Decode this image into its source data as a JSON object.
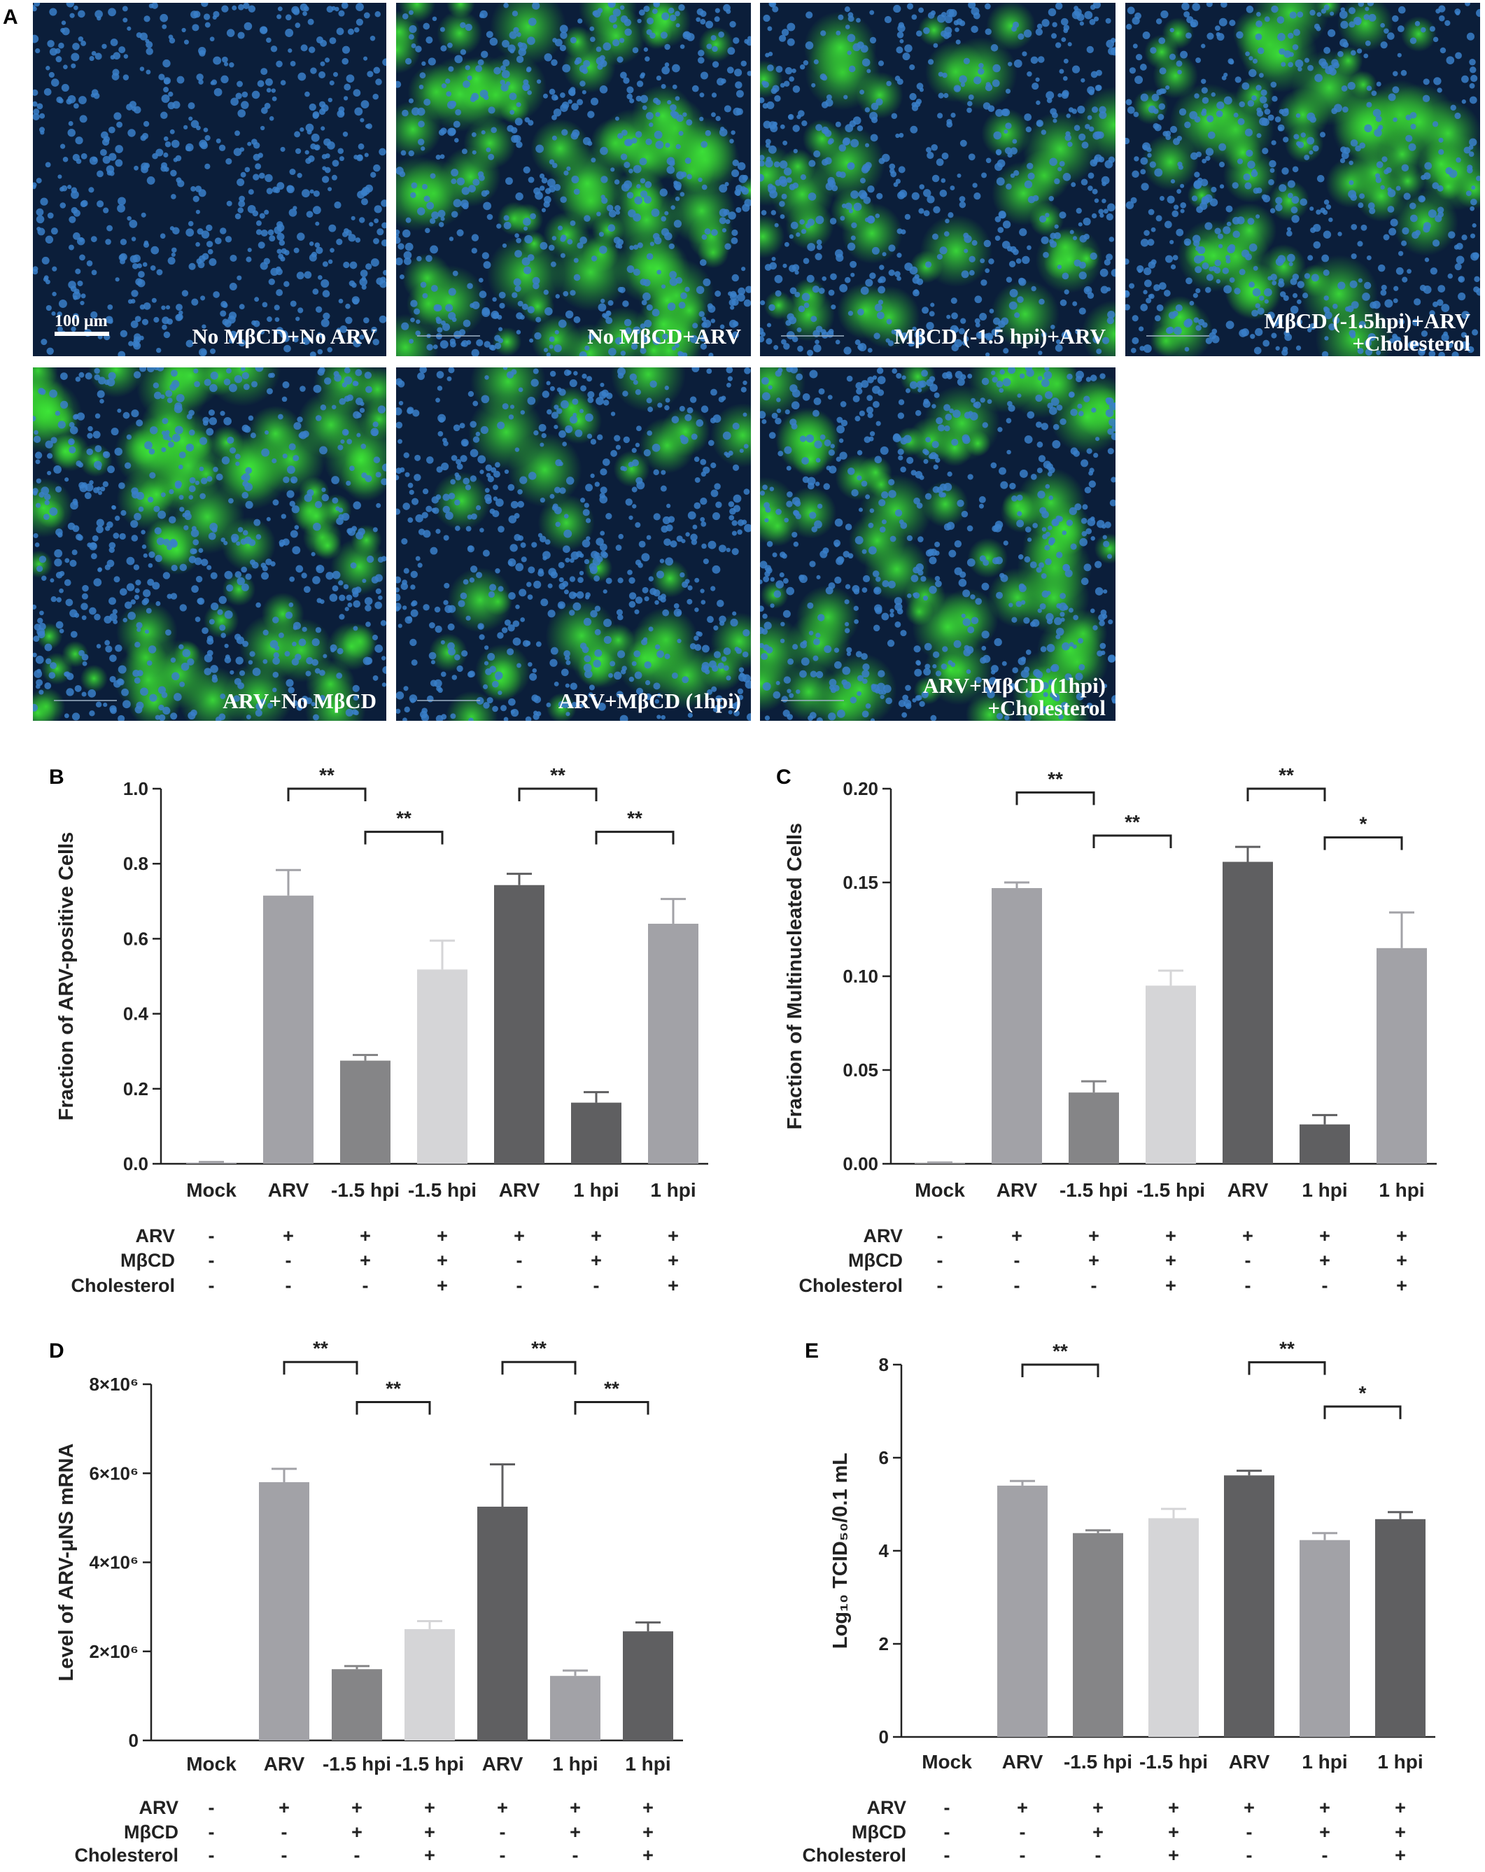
{
  "figure": {
    "panel_a_letter": "A",
    "scale_bar_label": "100 μm",
    "micrographs": [
      {
        "line1": "No MβCD+No ARV",
        "line2": "",
        "green": 0.0
      },
      {
        "line1": "No MβCD+ARV",
        "line2": "",
        "green": 0.8
      },
      {
        "line1": "MβCD (-1.5 hpi)+ARV",
        "line2": "",
        "green": 0.4
      },
      {
        "line1": "MβCD (-1.5hpi)+ARV",
        "line2": "+Cholesterol",
        "green": 0.6
      },
      {
        "line1": "ARV+No MβCD",
        "line2": "",
        "green": 0.85
      },
      {
        "line1": "ARV+MβCD (1hpi)",
        "line2": "",
        "green": 0.35
      },
      {
        "line1": "ARV+MβCD (1hpi)",
        "line2": "+Cholesterol",
        "green": 0.7
      }
    ],
    "colors": {
      "light": "#a2a2a7",
      "mid": "#858587",
      "pale": "#d5d5d7",
      "dark": "#5f5f61",
      "nuclei": "#3a7fc9",
      "stain": "#39d12f"
    }
  },
  "chart_data": [
    {
      "letter": "B",
      "type": "bar",
      "ylabel": "Fraction of ARV-positive Cells",
      "ylim": [
        0,
        1.0
      ],
      "yticks": [
        0,
        0.2,
        0.4,
        0.6,
        0.8,
        1.0
      ],
      "ytick_labels": [
        "0.0",
        "0.2",
        "0.4",
        "0.6",
        "0.8",
        "1.0"
      ],
      "categories": [
        "Mock",
        "ARV",
        "-1.5 hpi",
        "-1.5 hpi",
        "ARV",
        "1 hpi",
        "1 hpi"
      ],
      "values": [
        0.003,
        0.715,
        0.275,
        0.518,
        0.743,
        0.163,
        0.64
      ],
      "errors": [
        0.002,
        0.068,
        0.015,
        0.077,
        0.03,
        0.028,
        0.066
      ],
      "bar_colors": [
        "light",
        "light",
        "mid",
        "pale",
        "dark",
        "dark",
        "light"
      ],
      "significance": [
        {
          "from": 1,
          "to": 2,
          "label": "**",
          "level": 1.0
        },
        {
          "from": 2,
          "to": 3,
          "label": "**",
          "level": 0.885
        },
        {
          "from": 4,
          "to": 5,
          "label": "**",
          "level": 1.0
        },
        {
          "from": 5,
          "to": 6,
          "label": "**",
          "level": 0.885
        }
      ],
      "conditions": {
        "labels": [
          "ARV",
          "MβCD",
          "Cholesterol"
        ],
        "rows": [
          [
            "-",
            "+",
            "+",
            "+",
            "+",
            "+",
            "+"
          ],
          [
            "-",
            "-",
            "+",
            "+",
            "-",
            "+",
            "+"
          ],
          [
            "-",
            "-",
            "-",
            "+",
            "-",
            "-",
            "+"
          ]
        ]
      }
    },
    {
      "letter": "C",
      "type": "bar",
      "ylabel": "Fraction of Multinucleated Cells",
      "ylim": [
        0,
        0.2
      ],
      "yticks": [
        0,
        0.05,
        0.1,
        0.15,
        0.2
      ],
      "ytick_labels": [
        "0.00",
        "0.05",
        "0.10",
        "0.15",
        "0.20"
      ],
      "categories": [
        "Mock",
        "ARV",
        "-1.5 hpi",
        "-1.5 hpi",
        "ARV",
        "1 hpi",
        "1 hpi"
      ],
      "values": [
        0.0004,
        0.147,
        0.038,
        0.095,
        0.161,
        0.021,
        0.115
      ],
      "errors": [
        0.0003,
        0.003,
        0.006,
        0.008,
        0.008,
        0.005,
        0.019
      ],
      "bar_colors": [
        "light",
        "light",
        "mid",
        "pale",
        "dark",
        "dark",
        "light"
      ],
      "significance": [
        {
          "from": 1,
          "to": 2,
          "label": "**",
          "level": 0.198
        },
        {
          "from": 2,
          "to": 3,
          "label": "**",
          "level": 0.175
        },
        {
          "from": 4,
          "to": 5,
          "label": "**",
          "level": 0.2
        },
        {
          "from": 5,
          "to": 6,
          "label": "*",
          "level": 0.174
        }
      ],
      "conditions": {
        "labels": [
          "ARV",
          "MβCD",
          "Cholesterol"
        ],
        "rows": [
          [
            "-",
            "+",
            "+",
            "+",
            "+",
            "+",
            "+"
          ],
          [
            "-",
            "-",
            "+",
            "+",
            "-",
            "+",
            "+"
          ],
          [
            "-",
            "-",
            "-",
            "+",
            "-",
            "-",
            "+"
          ]
        ]
      }
    },
    {
      "letter": "D",
      "type": "bar",
      "ylabel": "Level of ARV-μNS mRNA",
      "ylim": [
        0,
        8000000
      ],
      "yticks": [
        0,
        2000000,
        4000000,
        6000000,
        8000000
      ],
      "ytick_labels": [
        "0",
        "2×10⁶",
        "4×10⁶",
        "6×10⁶",
        "8×10⁶"
      ],
      "categories": [
        "Mock",
        "ARV",
        "-1.5 hpi",
        "-1.5 hpi",
        "ARV",
        "1 hpi",
        "1 hpi"
      ],
      "values": [
        0,
        5800000,
        1600000,
        2500000,
        5250000,
        1450000,
        2450000
      ],
      "errors": [
        0,
        300000,
        70000,
        180000,
        950000,
        120000,
        200000
      ],
      "bar_colors": [
        "light",
        "light",
        "mid",
        "pale",
        "dark",
        "light",
        "dark"
      ],
      "significance": [
        {
          "from": 1,
          "to": 2,
          "label": "**",
          "level": 8500000
        },
        {
          "from": 2,
          "to": 3,
          "label": "**",
          "level": 7600000
        },
        {
          "from": 4,
          "to": 5,
          "label": "**",
          "level": 8500000
        },
        {
          "from": 5,
          "to": 6,
          "label": "**",
          "level": 7600000
        }
      ],
      "conditions": {
        "labels": [
          "ARV",
          "MβCD",
          "Cholesterol"
        ],
        "rows": [
          [
            "-",
            "+",
            "+",
            "+",
            "+",
            "+",
            "+"
          ],
          [
            "-",
            "-",
            "+",
            "+",
            "-",
            "+",
            "+"
          ],
          [
            "-",
            "-",
            "-",
            "+",
            "-",
            "-",
            "+"
          ]
        ]
      }
    },
    {
      "letter": "E",
      "type": "bar",
      "ylabel": "Log₁₀ TCID₅₀/0.1 mL",
      "ylim": [
        0,
        8
      ],
      "yticks": [
        0,
        2,
        4,
        6,
        8
      ],
      "ytick_labels": [
        "0",
        "2",
        "4",
        "6",
        "8"
      ],
      "categories": [
        "Mock",
        "ARV",
        "-1.5 hpi",
        "-1.5 hpi",
        "ARV",
        "1 hpi",
        "1 hpi"
      ],
      "values": [
        0,
        5.4,
        4.38,
        4.7,
        5.62,
        4.23,
        4.68
      ],
      "errors": [
        0,
        0.1,
        0.06,
        0.2,
        0.1,
        0.15,
        0.15
      ],
      "bar_colors": [
        "light",
        "light",
        "mid",
        "pale",
        "dark",
        "light",
        "dark"
      ],
      "significance": [
        {
          "from": 1,
          "to": 2,
          "label": "**",
          "level": 8.0
        },
        {
          "from": 4,
          "to": 5,
          "label": "**",
          "level": 8.05
        },
        {
          "from": 5,
          "to": 6,
          "label": "*",
          "level": 7.1
        }
      ],
      "conditions": {
        "labels": [
          "ARV",
          "MβCD",
          "Cholesterol"
        ],
        "rows": [
          [
            "-",
            "+",
            "+",
            "+",
            "+",
            "+",
            "+"
          ],
          [
            "-",
            "-",
            "+",
            "+",
            "-",
            "+",
            "+"
          ],
          [
            "-",
            "-",
            "-",
            "+",
            "-",
            "-",
            "+"
          ]
        ]
      }
    }
  ]
}
